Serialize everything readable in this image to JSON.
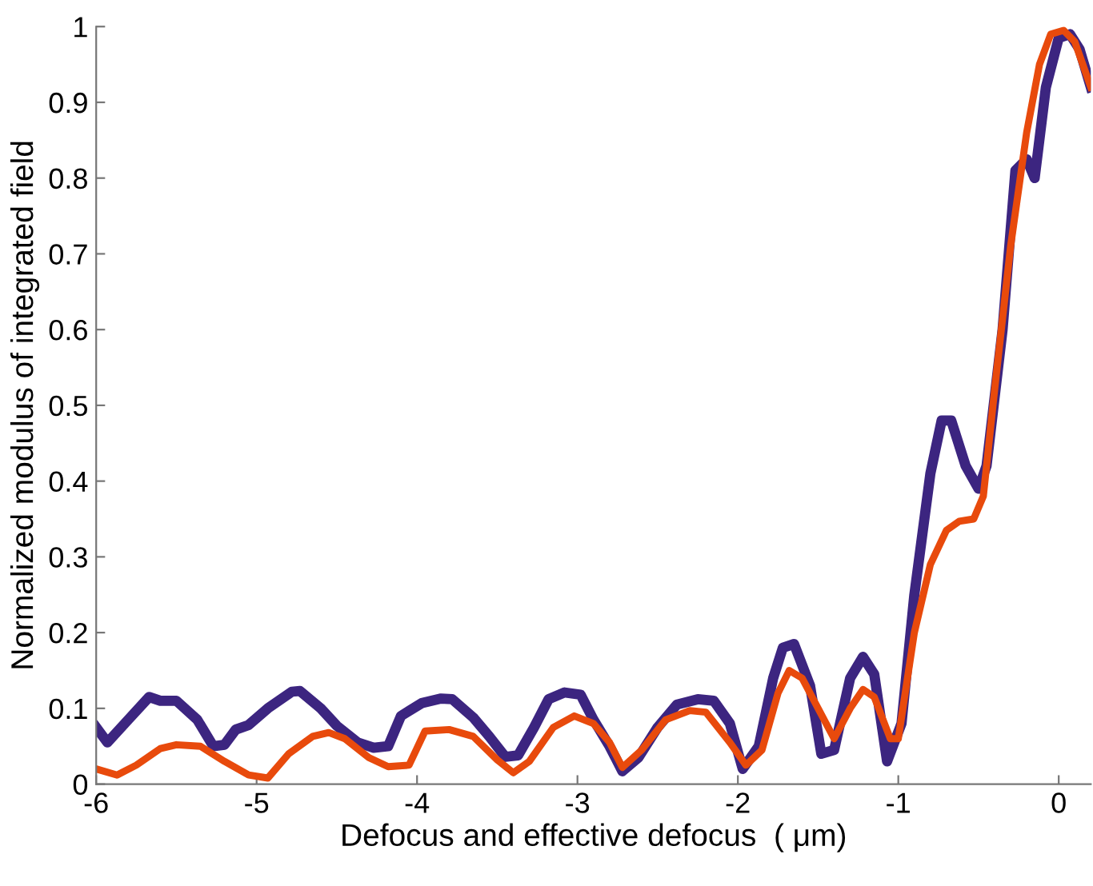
{
  "chart_data": {
    "type": "line",
    "xlabel": "Defocus and effective defocus  ( μm)",
    "ylabel": "Normalized modulus of integrated field",
    "xlim": [
      -6,
      0.2
    ],
    "ylim": [
      0,
      1
    ],
    "xticks": [
      -6,
      -5,
      -4,
      -3,
      -2,
      -1,
      0
    ],
    "yticks": [
      0,
      0.1,
      0.2,
      0.3,
      0.4,
      0.5,
      0.6,
      0.7,
      0.8,
      0.9,
      1
    ],
    "grid": false,
    "legend": false,
    "marker": "none",
    "line_style": "solid",
    "series": [
      {
        "color": "#3c2580",
        "x": [
          -6,
          -5.93,
          -5.8,
          -5.67,
          -5.6,
          -5.5,
          -5.37,
          -5.27,
          -5.2,
          -5.13,
          -5.05,
          -4.93,
          -4.78,
          -4.73,
          -4.6,
          -4.5,
          -4.37,
          -4.27,
          -4.18,
          -4.1,
          -3.97,
          -3.85,
          -3.78,
          -3.65,
          -3.55,
          -3.45,
          -3.37,
          -3.27,
          -3.18,
          -3.08,
          -2.98,
          -2.9,
          -2.8,
          -2.72,
          -2.62,
          -2.5,
          -2.38,
          -2.25,
          -2.15,
          -2.05,
          -1.97,
          -1.87,
          -1.78,
          -1.72,
          -1.65,
          -1.55,
          -1.48,
          -1.4,
          -1.3,
          -1.22,
          -1.15,
          -1.07,
          -0.98,
          -0.9,
          -0.8,
          -0.73,
          -0.67,
          -0.58,
          -0.5,
          -0.45,
          -0.35,
          -0.27,
          -0.2,
          -0.15,
          -0.08,
          0,
          0.07,
          0.13,
          0.2
        ],
        "values": [
          0.075,
          0.055,
          0.085,
          0.115,
          0.11,
          0.11,
          0.085,
          0.05,
          0.052,
          0.072,
          0.078,
          0.1,
          0.122,
          0.123,
          0.1,
          0.077,
          0.055,
          0.048,
          0.05,
          0.09,
          0.107,
          0.113,
          0.112,
          0.088,
          0.063,
          0.036,
          0.038,
          0.075,
          0.112,
          0.121,
          0.118,
          0.085,
          0.05,
          0.017,
          0.035,
          0.075,
          0.105,
          0.112,
          0.11,
          0.08,
          0.02,
          0.05,
          0.14,
          0.18,
          0.185,
          0.13,
          0.04,
          0.045,
          0.14,
          0.168,
          0.145,
          0.03,
          0.08,
          0.25,
          0.41,
          0.48,
          0.48,
          0.42,
          0.39,
          0.42,
          0.6,
          0.81,
          0.825,
          0.8,
          0.92,
          0.985,
          0.99,
          0.97,
          0.92
        ]
      },
      {
        "color": "#e84a0c",
        "x": [
          -6,
          -5.87,
          -5.75,
          -5.6,
          -5.5,
          -5.35,
          -5.2,
          -5.05,
          -4.93,
          -4.8,
          -4.65,
          -4.55,
          -4.45,
          -4.3,
          -4.18,
          -4.05,
          -3.95,
          -3.8,
          -3.65,
          -3.5,
          -3.4,
          -3.3,
          -3.15,
          -3.02,
          -2.9,
          -2.8,
          -2.72,
          -2.6,
          -2.45,
          -2.3,
          -2.2,
          -2.05,
          -1.95,
          -1.85,
          -1.75,
          -1.68,
          -1.6,
          -1.5,
          -1.4,
          -1.3,
          -1.22,
          -1.15,
          -1.05,
          -1,
          -0.9,
          -0.8,
          -0.7,
          -0.62,
          -0.53,
          -0.47,
          -0.4,
          -0.3,
          -0.2,
          -0.12,
          -0.05,
          0.03,
          0.1,
          0.2
        ],
        "values": [
          0.02,
          0.012,
          0.025,
          0.047,
          0.052,
          0.05,
          0.03,
          0.012,
          0.008,
          0.04,
          0.063,
          0.068,
          0.06,
          0.035,
          0.023,
          0.025,
          0.07,
          0.072,
          0.063,
          0.032,
          0.015,
          0.03,
          0.075,
          0.09,
          0.08,
          0.055,
          0.022,
          0.045,
          0.085,
          0.097,
          0.095,
          0.055,
          0.025,
          0.045,
          0.12,
          0.15,
          0.14,
          0.1,
          0.06,
          0.1,
          0.125,
          0.115,
          0.06,
          0.06,
          0.2,
          0.29,
          0.335,
          0.347,
          0.35,
          0.38,
          0.52,
          0.71,
          0.86,
          0.95,
          0.99,
          0.995,
          0.98,
          0.92
        ]
      }
    ]
  }
}
